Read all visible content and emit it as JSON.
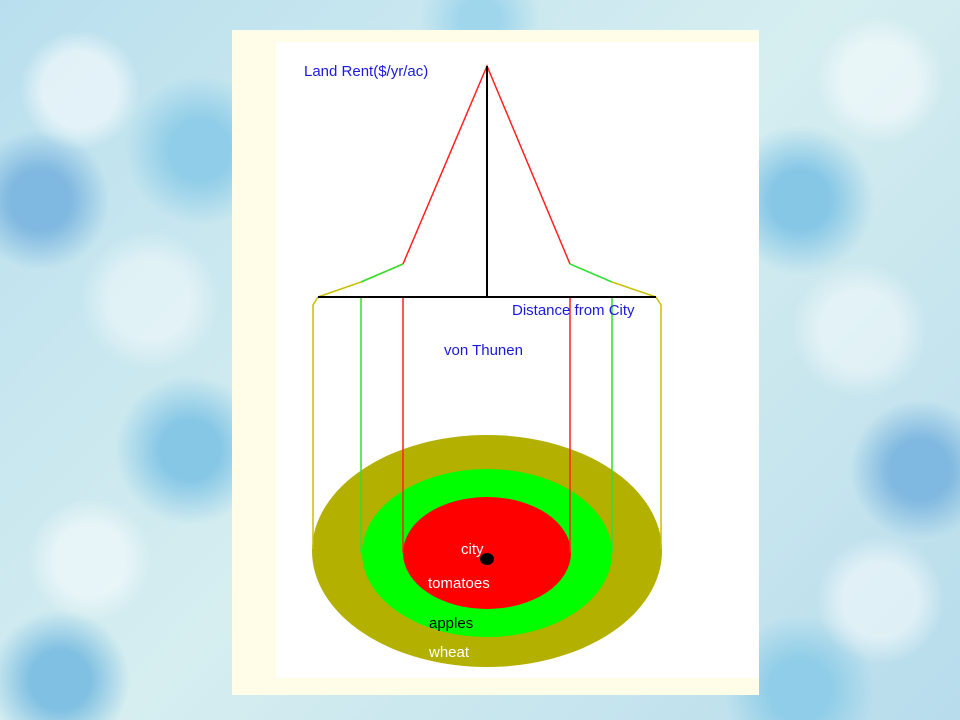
{
  "diagram": {
    "y_axis_label": "Land Rent($/yr/ac)",
    "x_axis_label": "Distance from City",
    "title": "von Thunen",
    "rings": [
      {
        "label": "city",
        "color": "#ff0000",
        "text_color": "#ffffff"
      },
      {
        "label": "tomatoes",
        "color": "#ff0000",
        "text_color": "#ffffff"
      },
      {
        "label": "apples",
        "color": "#00ff00",
        "text_color": "#000000"
      },
      {
        "label": "wheat",
        "color": "#b3b000",
        "text_color": "#ffffff"
      }
    ],
    "colors": {
      "tomatoes_line": "#ff2020",
      "apples_line": "#30e030",
      "wheat_line": "#c8c000",
      "axis": "#000000",
      "text": "#1a1adf"
    }
  }
}
